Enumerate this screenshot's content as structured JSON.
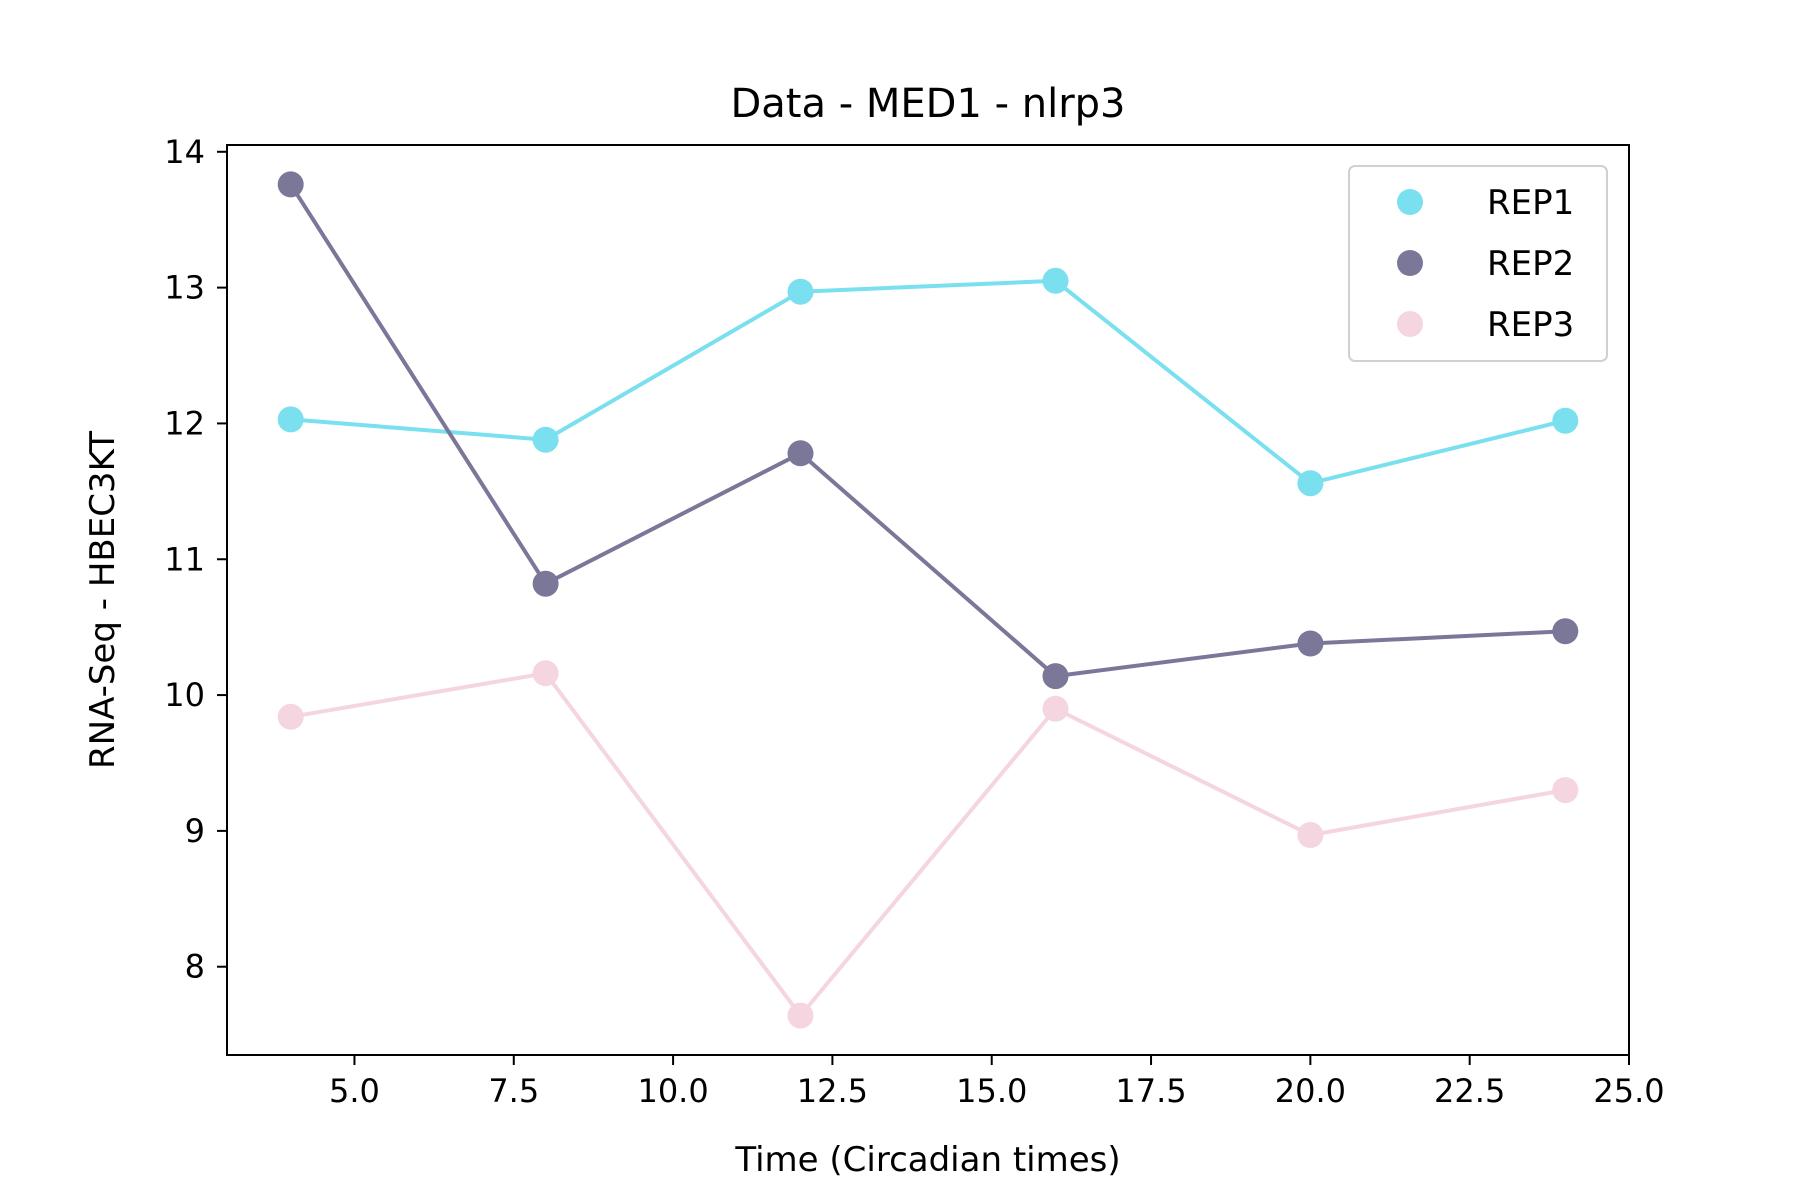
{
  "chart_data": {
    "type": "line",
    "title": "Data - MED1 - nlrp3",
    "xlabel": "Time (Circadian times)",
    "ylabel": "RNA-Seq - HBEC3KT",
    "x": [
      4,
      8,
      12,
      16,
      20,
      24
    ],
    "xlim": [
      3,
      25
    ],
    "ylim": [
      7.35,
      14.05
    ],
    "xticks": [
      5.0,
      7.5,
      10.0,
      12.5,
      15.0,
      17.5,
      20.0,
      22.5,
      25.0
    ],
    "xtick_labels": [
      "5.0",
      "7.5",
      "10.0",
      "12.5",
      "15.0",
      "17.5",
      "20.0",
      "22.5",
      "25.0"
    ],
    "yticks": [
      8,
      9,
      10,
      11,
      12,
      13,
      14
    ],
    "ytick_labels": [
      "8",
      "9",
      "10",
      "11",
      "12",
      "13",
      "14"
    ],
    "grid": false,
    "legend_position": "top-right",
    "series": [
      {
        "name": "REP1",
        "color": "#7adfee",
        "values": [
          12.03,
          11.88,
          12.97,
          13.05,
          11.56,
          12.02
        ]
      },
      {
        "name": "REP2",
        "color": "#7a7799",
        "values": [
          13.76,
          10.82,
          11.78,
          10.14,
          10.38,
          10.47
        ]
      },
      {
        "name": "REP3",
        "color": "#f5d5df",
        "values": [
          9.84,
          10.16,
          7.64,
          9.9,
          8.97,
          9.3
        ]
      }
    ]
  }
}
